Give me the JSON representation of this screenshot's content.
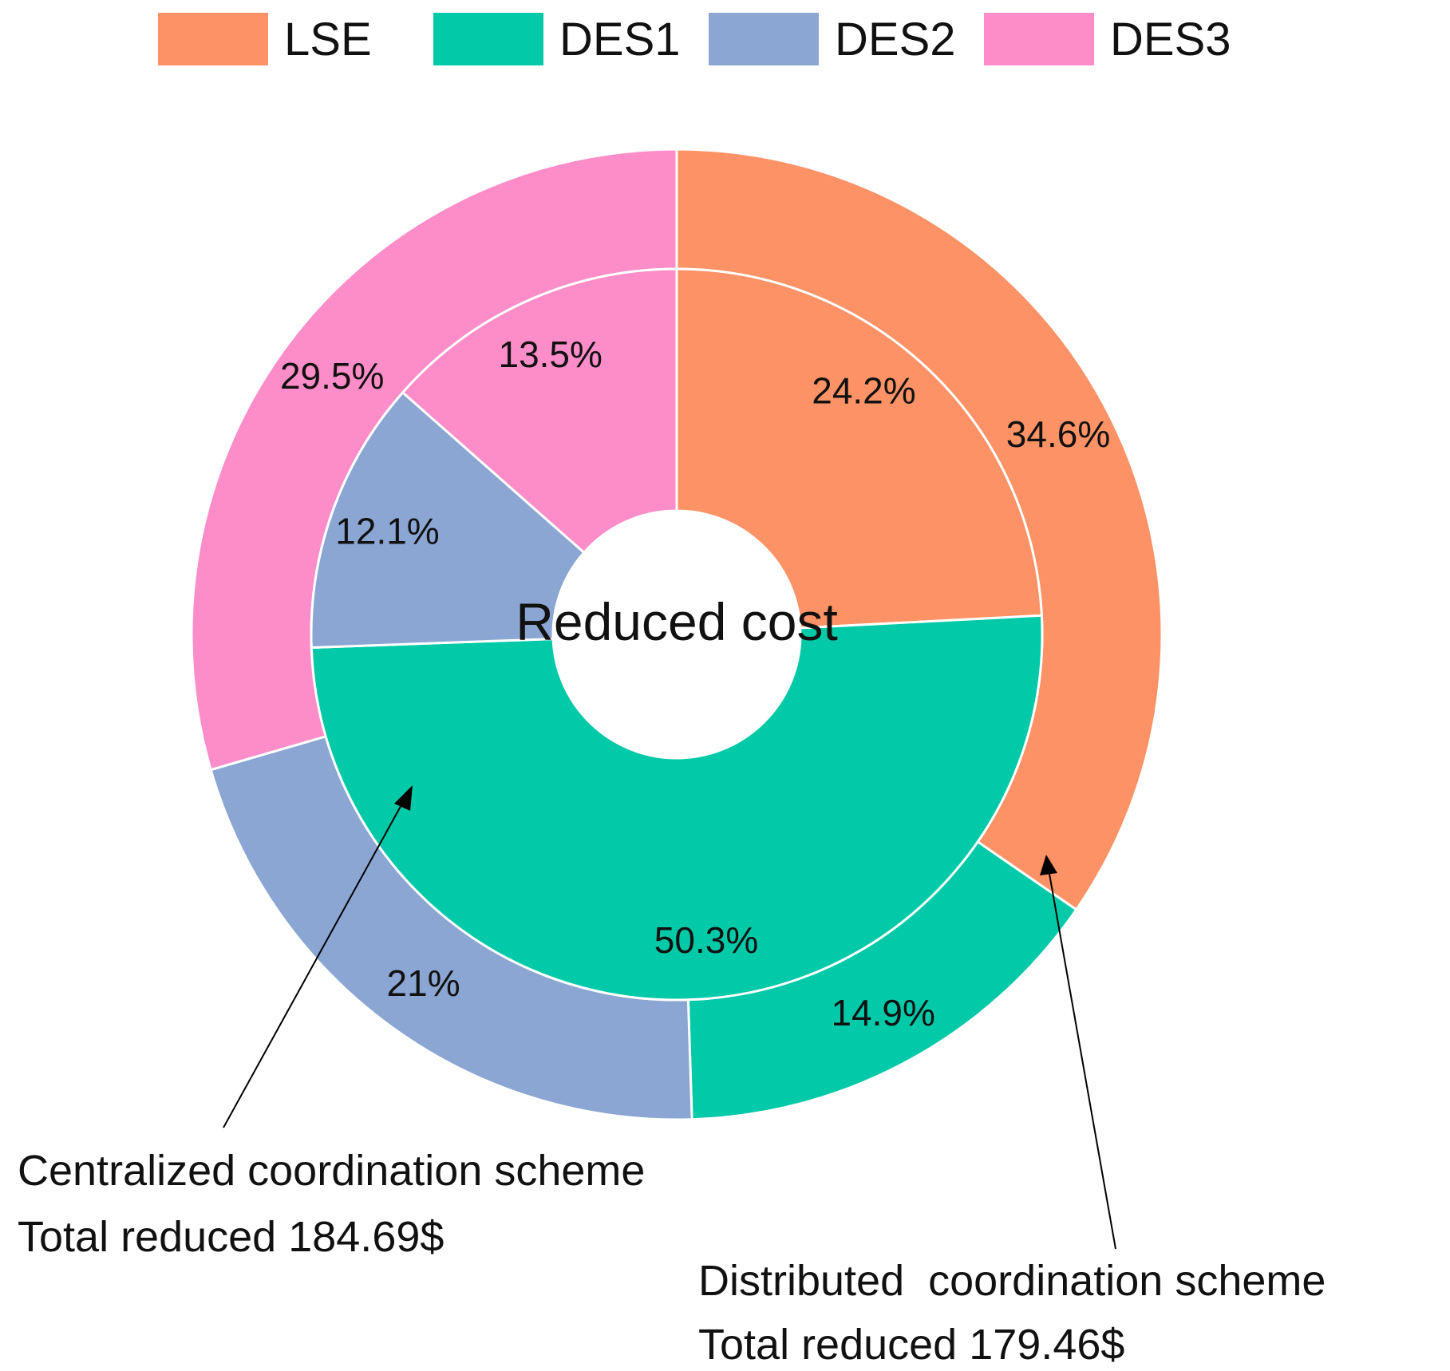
{
  "chart_data": {
    "type": "donut",
    "center_label": "Reduced cost",
    "legend": [
      {
        "name": "LSE",
        "color": "#FC9265"
      },
      {
        "name": "DES1",
        "color": "#02C9A7"
      },
      {
        "name": "DES2",
        "color": "#8BA6D3"
      },
      {
        "name": "DES3",
        "color": "#FD8DC8"
      }
    ],
    "rings": [
      {
        "ring": "inner",
        "scheme": "Centralized coordination scheme",
        "total_label": "Total reduced 184.69$",
        "slices": [
          {
            "name": "LSE",
            "value": 24.2,
            "label": "24.2%"
          },
          {
            "name": "DES1",
            "value": 50.3,
            "label": "50.3%"
          },
          {
            "name": "DES2",
            "value": 12.1,
            "label": "12.1%"
          },
          {
            "name": "DES3",
            "value": 13.5,
            "label": "13.5%"
          }
        ]
      },
      {
        "ring": "outer",
        "scheme": "Distributed  coordination scheme",
        "total_label": "Total reduced 179.46$",
        "slices": [
          {
            "name": "LSE",
            "value": 34.6,
            "label": "34.6%"
          },
          {
            "name": "DES1",
            "value": 14.9,
            "label": "14.9%"
          },
          {
            "name": "DES2",
            "value": 21,
            "label": "21%"
          },
          {
            "name": "DES3",
            "value": 29.5,
            "label": "29.5%"
          }
        ]
      }
    ]
  }
}
